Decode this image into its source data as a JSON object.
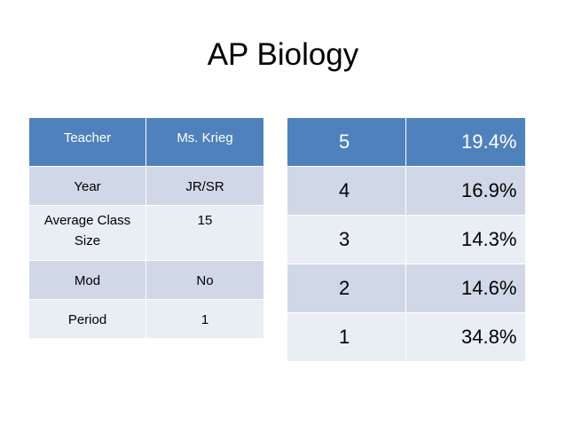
{
  "title": "AP Biology",
  "teacher_table": {
    "header": [
      "Teacher",
      "Ms. Krieg"
    ],
    "rows": [
      [
        "Year",
        "JR/SR"
      ],
      [
        "Average Class Size",
        "15"
      ],
      [
        "Mod",
        "No"
      ],
      [
        "Period",
        "1"
      ]
    ]
  },
  "score_table": {
    "rows": [
      [
        "5",
        "19.4%"
      ],
      [
        "4",
        "16.9%"
      ],
      [
        "3",
        "14.3%"
      ],
      [
        "2",
        "14.6%"
      ],
      [
        "1",
        "34.8%"
      ]
    ]
  },
  "colors": {
    "header_fill": "#4f81bd",
    "band_fill": "#d0d8e8",
    "light_fill": "#e9edf4"
  }
}
